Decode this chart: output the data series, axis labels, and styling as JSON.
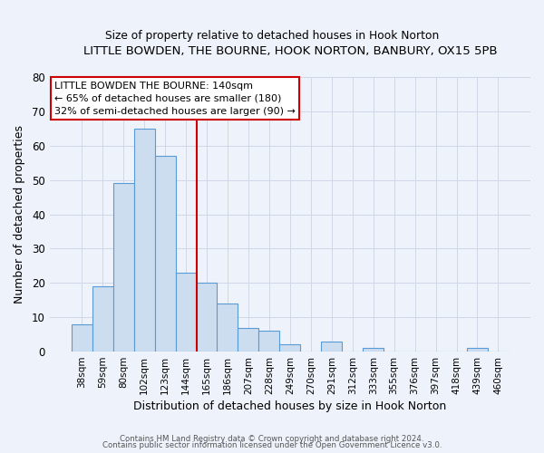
{
  "title": "LITTLE BOWDEN, THE BOURNE, HOOK NORTON, BANBURY, OX15 5PB",
  "subtitle": "Size of property relative to detached houses in Hook Norton",
  "xlabel": "Distribution of detached houses by size in Hook Norton",
  "ylabel": "Number of detached properties",
  "bar_labels": [
    "38sqm",
    "59sqm",
    "80sqm",
    "102sqm",
    "123sqm",
    "144sqm",
    "165sqm",
    "186sqm",
    "207sqm",
    "228sqm",
    "249sqm",
    "270sqm",
    "291sqm",
    "312sqm",
    "333sqm",
    "355sqm",
    "376sqm",
    "397sqm",
    "418sqm",
    "439sqm",
    "460sqm"
  ],
  "bar_values": [
    8,
    19,
    49,
    65,
    57,
    23,
    20,
    14,
    7,
    6,
    2,
    0,
    3,
    0,
    1,
    0,
    0,
    0,
    0,
    1,
    0
  ],
  "bar_color": "#ccddf0",
  "bar_edge_color": "#5b9bd5",
  "ylim": [
    0,
    80
  ],
  "yticks": [
    0,
    10,
    20,
    30,
    40,
    50,
    60,
    70,
    80
  ],
  "vline_x": 5.5,
  "vline_color": "#cc0000",
  "annotation_line1": "LITTLE BOWDEN THE BOURNE: 140sqm",
  "annotation_line2": "← 65% of detached houses are smaller (180)",
  "annotation_line3": "32% of semi-detached houses are larger (90) →",
  "annotation_box_facecolor": "#ffffff",
  "annotation_box_edgecolor": "#cc0000",
  "grid_color": "#d0d8e8",
  "bg_color": "#eef2fa",
  "footer1": "Contains HM Land Registry data © Crown copyright and database right 2024.",
  "footer2": "Contains public sector information licensed under the Open Government Licence v3.0."
}
